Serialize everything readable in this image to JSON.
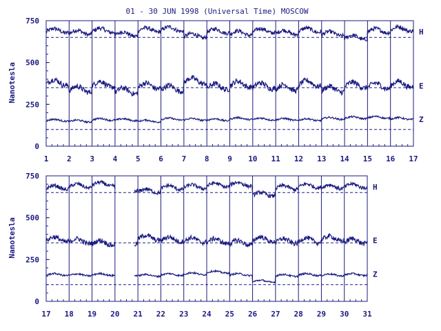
{
  "chart_data": {
    "type": "line",
    "title": "01 - 30 JUN 1998 (Universal Time) MOSCOW",
    "ylabel": "Nanotesla",
    "colors": {
      "line": "#1a1a80",
      "background": "#ffffff"
    },
    "grid": "vertical day lines",
    "panels": [
      {
        "xlim": [
          1,
          17
        ],
        "x_ticks": [
          "1",
          "2",
          "3",
          "4",
          "5",
          "6",
          "7",
          "8",
          "9",
          "10",
          "11",
          "12",
          "13",
          "14",
          "15",
          "16",
          "17"
        ],
        "ylim": [
          0,
          750
        ],
        "y_ticks": [
          "0",
          "250",
          "500",
          "750"
        ],
        "series": [
          {
            "name": "H",
            "baseline": 650,
            "level": 685,
            "amp": 22,
            "noise": 12,
            "values": [
              690,
              680,
              692,
              670,
              695,
              700,
              660,
              688,
              676,
              690,
              680,
              693,
              672,
              650,
              690,
              700
            ]
          },
          {
            "name": "E",
            "baseline": 350,
            "level": 360,
            "amp": 30,
            "noise": 16,
            "values": [
              380,
              340,
              370,
              330,
              360,
              345,
              390,
              355,
              370,
              360,
              350,
              375,
              340,
              365,
              360,
              370
            ]
          },
          {
            "name": "Z",
            "baseline": 100,
            "level": 160,
            "amp": 10,
            "noise": 5,
            "values": [
              155,
              150,
              160,
              158,
              150,
              162,
              160,
              158,
              165,
              162,
              160,
              158,
              166,
              170,
              172,
              165
            ]
          }
        ],
        "gaps": []
      },
      {
        "xlim": [
          17,
          31
        ],
        "x_ticks": [
          "17",
          "18",
          "19",
          "20",
          "21",
          "22",
          "23",
          "24",
          "25",
          "26",
          "27",
          "28",
          "29",
          "30",
          "31"
        ],
        "ylim": [
          0,
          750
        ],
        "y_ticks": [
          "0",
          "250",
          "500",
          "750"
        ],
        "series": [
          {
            "name": "H",
            "baseline": 650,
            "level": 685,
            "amp": 20,
            "noise": 11,
            "values": [
              680,
              690,
              700,
              670,
              660,
              680,
              685,
              695,
              700,
              640,
              680,
              690,
              685,
              690
            ]
          },
          {
            "name": "E",
            "baseline": 350,
            "level": 365,
            "amp": 25,
            "noise": 14,
            "values": [
              370,
              360,
              350,
              355,
              380,
              370,
              365,
              360,
              350,
              370,
              360,
              365,
              375,
              360
            ]
          },
          {
            "name": "Z",
            "baseline": 100,
            "level": 162,
            "amp": 10,
            "noise": 5,
            "values": [
              160,
              158,
              160,
              160,
              155,
              160,
              165,
              175,
              160,
              120,
              155,
              160,
              158,
              160
            ]
          }
        ],
        "gaps": [
          [
            20.0,
            20.85
          ]
        ]
      }
    ]
  }
}
